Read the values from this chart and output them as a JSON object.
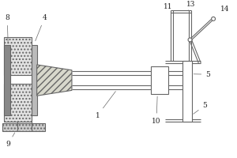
{
  "bg": "white",
  "lc": "#666666",
  "lw": 0.8,
  "fs": 6.5,
  "fc_dot": "#e0e0e0",
  "fc_grey": "#aaaaaa",
  "fc_hatch": "#d0d0d0",
  "fc_white": "white"
}
